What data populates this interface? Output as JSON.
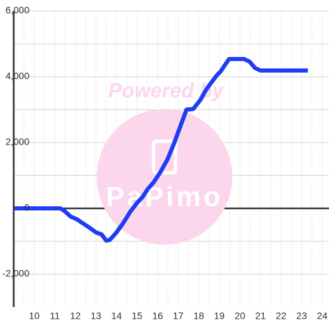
{
  "chart_data": {
    "type": "line",
    "watermark": "Powered by",
    "watermark_logo": "PaPimo",
    "x": [
      9,
      11.27,
      11.47,
      11.77,
      12.07,
      12.33,
      12.67,
      13.0,
      13.27,
      13.5,
      13.67,
      14.0,
      14.33,
      14.67,
      15.0,
      15.27,
      15.53,
      15.8,
      16.13,
      16.47,
      16.8,
      17.07,
      17.4,
      17.73,
      18.07,
      18.4,
      18.87,
      19.07,
      19.47,
      20.2,
      20.47,
      20.73,
      21.0,
      23.3
    ],
    "series": [
      {
        "color": "#1f3cf5",
        "values": [
          0,
          0,
          -80,
          -250,
          -330,
          -440,
          -580,
          -730,
          -790,
          -980,
          -960,
          -730,
          -440,
          -100,
          170,
          350,
          600,
          790,
          1100,
          1480,
          1980,
          2440,
          3000,
          3020,
          3290,
          3650,
          4040,
          4170,
          4540,
          4540,
          4460,
          4270,
          4190,
          4190
        ]
      }
    ],
    "xlim": [
      9,
      24.33
    ],
    "xticks": [
      10,
      11,
      12,
      13,
      14,
      15,
      16,
      17,
      18,
      19,
      20,
      21,
      22,
      23,
      24
    ],
    "x_minor_ticks": [
      9.5,
      10.5,
      11.5,
      12.5,
      13.5,
      14.5,
      15.5,
      16.5,
      17.5,
      18.5,
      19.5,
      20.5,
      21.5,
      22.5,
      23.5
    ],
    "ylim": [
      -3000,
      6000
    ],
    "yticks": [
      {
        "value": -2000,
        "label": "-2,000"
      },
      0,
      {
        "value": 2000,
        "label": "2,000"
      },
      {
        "value": 4000,
        "label": "4,000"
      },
      {
        "value": 6000,
        "label": "6,000"
      }
    ],
    "y_minor_ticks": [
      -1000,
      1000,
      3000,
      5000
    ],
    "grid": true
  }
}
